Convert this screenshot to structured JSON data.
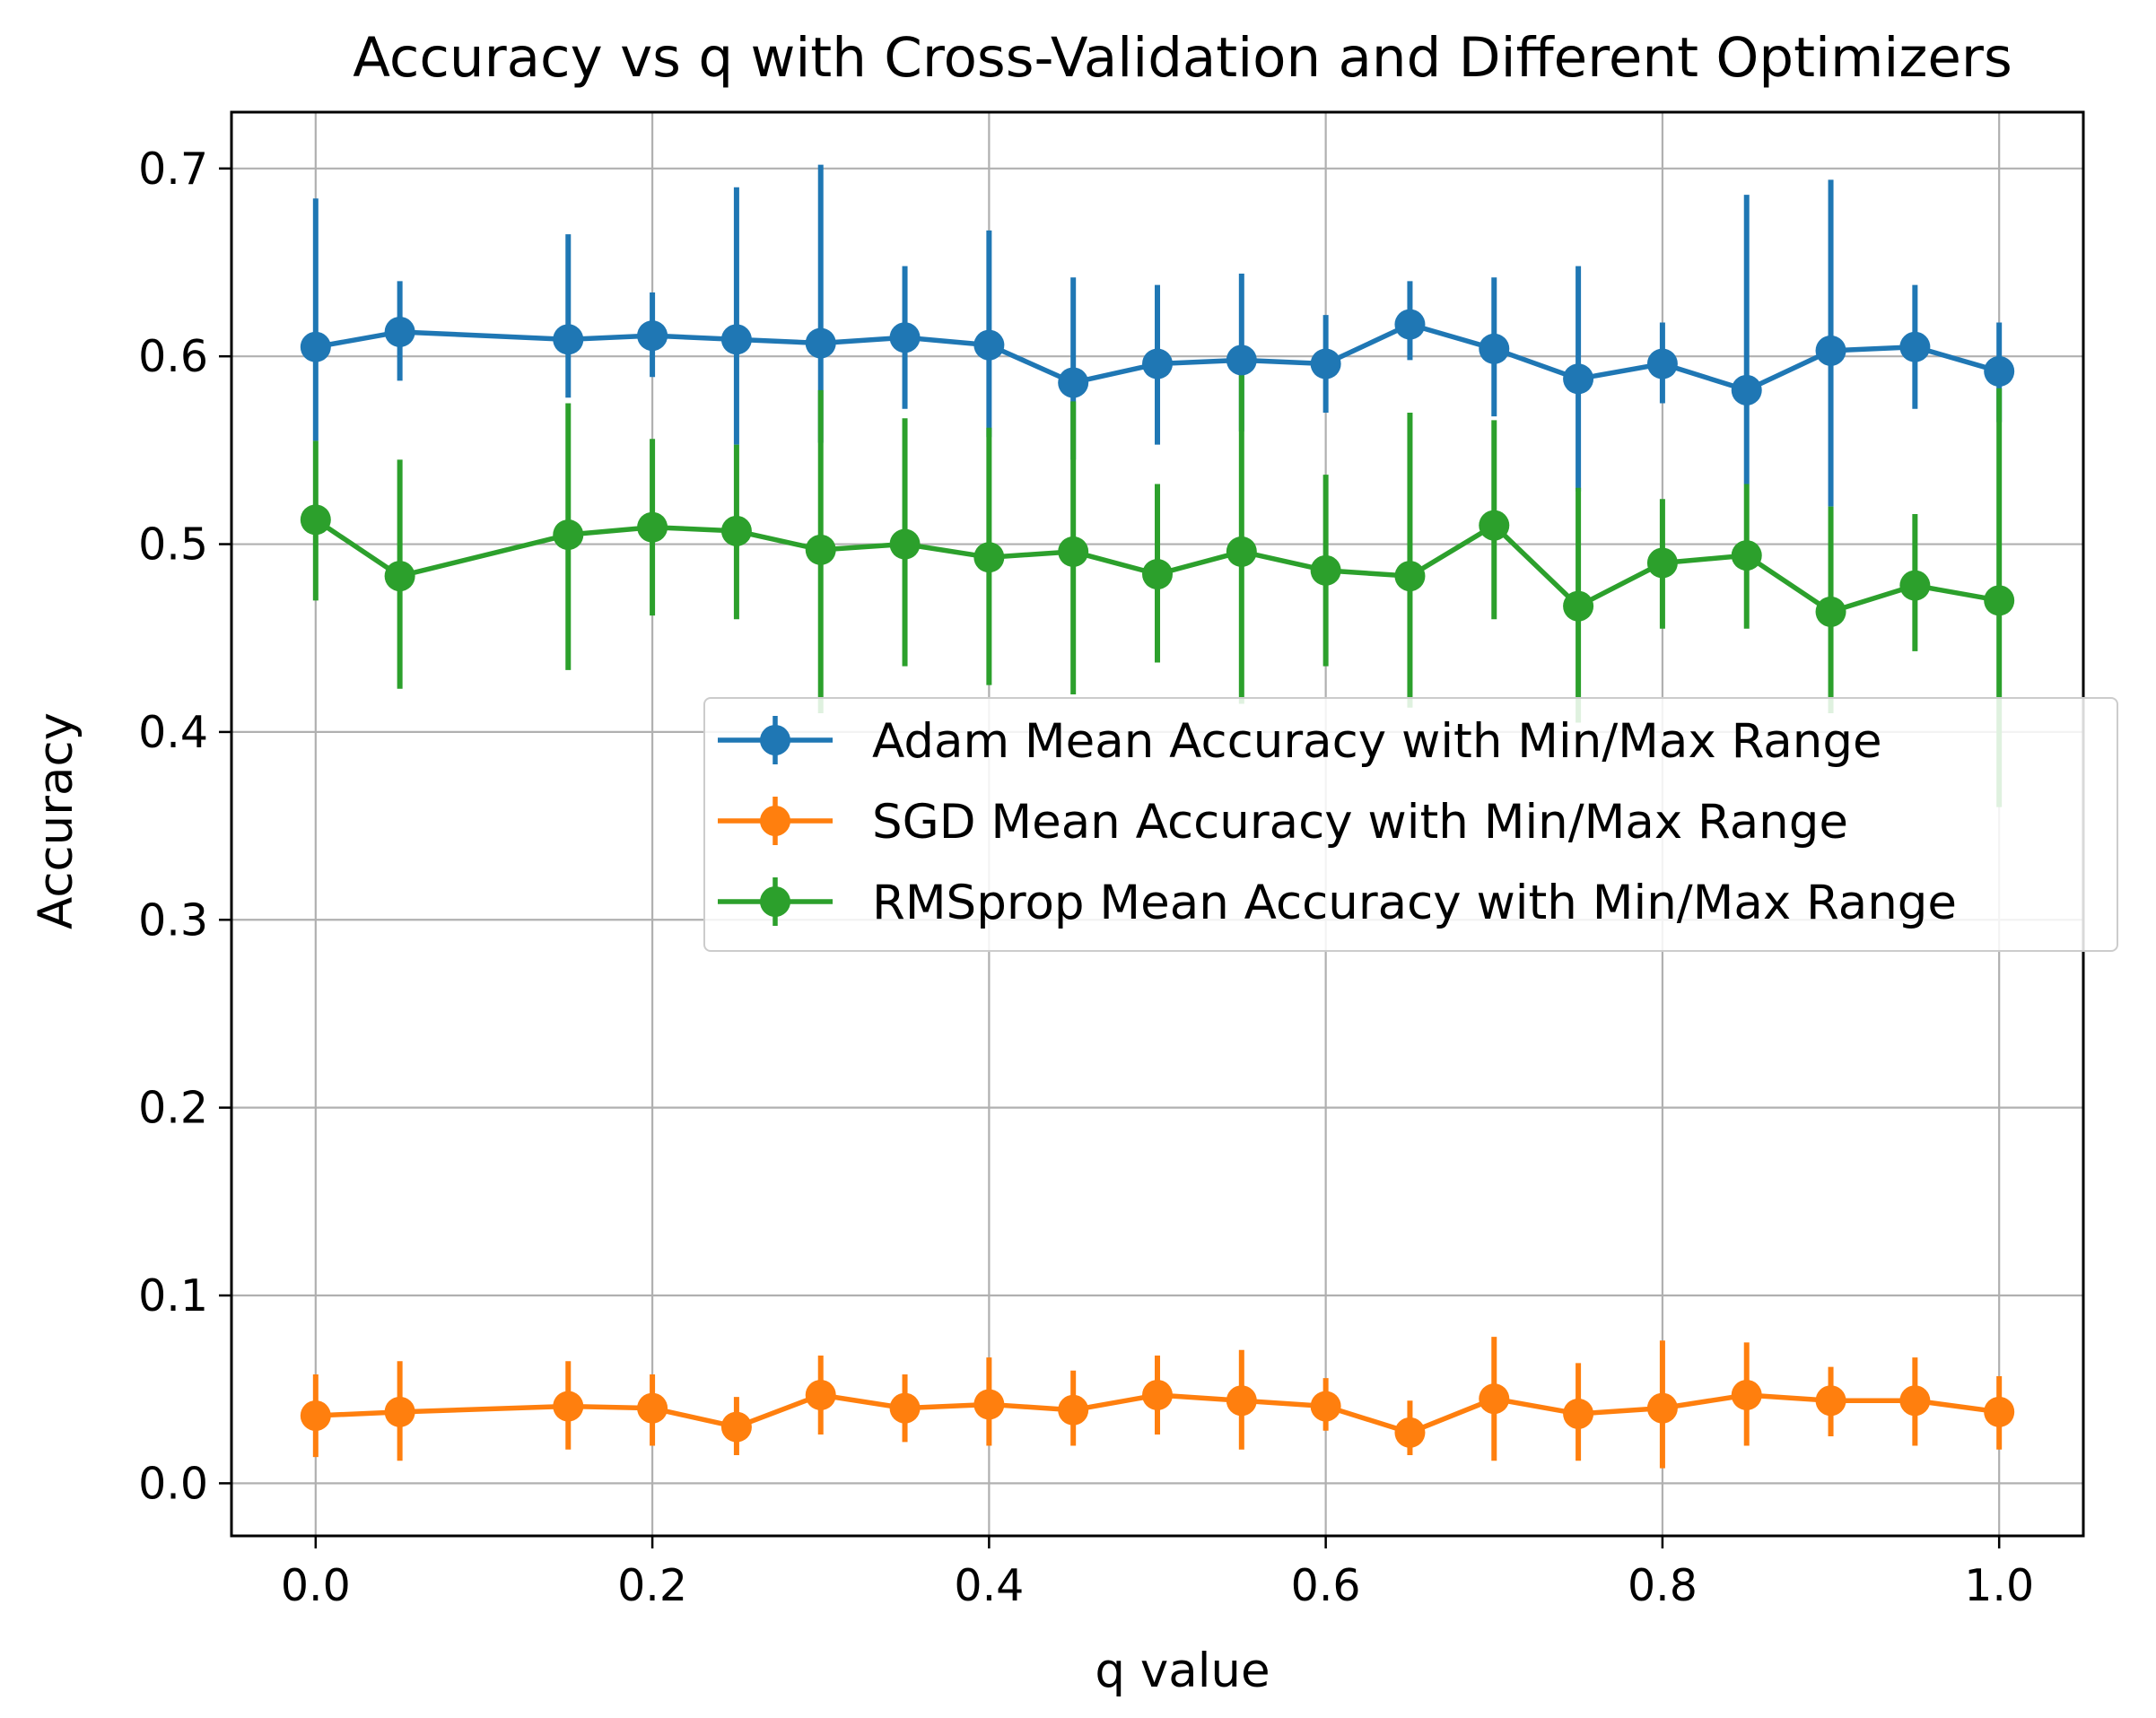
{
  "chart_data": {
    "type": "line",
    "title": "Accuracy vs q with Cross-Validation and Different Optimizers",
    "xlabel": "q value",
    "ylabel": "Accuracy",
    "xlim": [
      -0.05,
      1.05
    ],
    "ylim": [
      -0.028,
      0.73
    ],
    "xticks": [
      0.0,
      0.2,
      0.4,
      0.6,
      0.8,
      1.0
    ],
    "xtick_labels": [
      "0.0",
      "0.2",
      "0.4",
      "0.6",
      "0.8",
      "1.0"
    ],
    "yticks": [
      0.0,
      0.1,
      0.2,
      0.3,
      0.4,
      0.5,
      0.6,
      0.7
    ],
    "ytick_labels": [
      "0.0",
      "0.1",
      "0.2",
      "0.3",
      "0.4",
      "0.5",
      "0.6",
      "0.7"
    ],
    "grid": true,
    "legend_position": "center-right",
    "x": [
      0.0,
      0.05,
      0.15,
      0.2,
      0.25,
      0.3,
      0.35,
      0.4,
      0.45,
      0.5,
      0.55,
      0.6,
      0.65,
      0.7,
      0.75,
      0.8,
      0.85,
      0.9,
      0.95,
      1.0
    ],
    "series": [
      {
        "name": "Adam Mean Accuracy with Min/Max Range",
        "color": "#1f77b4",
        "values": [
          0.605,
          0.613,
          0.609,
          0.611,
          0.609,
          0.607,
          0.61,
          0.606,
          0.586,
          0.596,
          0.598,
          0.596,
          0.617,
          0.604,
          0.588,
          0.596,
          0.582,
          0.603,
          0.605,
          0.592
        ],
        "min": [
          0.555,
          0.587,
          0.578,
          0.589,
          0.553,
          0.554,
          0.572,
          0.557,
          0.545,
          0.553,
          0.56,
          0.57,
          0.598,
          0.568,
          0.528,
          0.575,
          0.532,
          0.52,
          0.572,
          0.565
        ],
        "max": [
          0.684,
          0.64,
          0.665,
          0.634,
          0.69,
          0.702,
          0.648,
          0.667,
          0.642,
          0.638,
          0.644,
          0.622,
          0.64,
          0.642,
          0.648,
          0.618,
          0.686,
          0.694,
          0.638,
          0.618
        ]
      },
      {
        "name": "SGD Mean Accuracy with Min/Max Range",
        "color": "#ff7f0e",
        "values": [
          0.036,
          0.038,
          0.041,
          0.04,
          0.03,
          0.047,
          0.04,
          0.042,
          0.039,
          0.047,
          0.044,
          0.041,
          0.027,
          0.045,
          0.037,
          0.04,
          0.047,
          0.044,
          0.044,
          0.038
        ],
        "min": [
          0.014,
          0.012,
          0.018,
          0.02,
          0.015,
          0.026,
          0.022,
          0.02,
          0.02,
          0.026,
          0.018,
          0.028,
          0.015,
          0.012,
          0.012,
          0.008,
          0.02,
          0.025,
          0.02,
          0.018
        ],
        "max": [
          0.058,
          0.065,
          0.065,
          0.058,
          0.046,
          0.068,
          0.058,
          0.067,
          0.06,
          0.068,
          0.071,
          0.056,
          0.044,
          0.078,
          0.064,
          0.076,
          0.075,
          0.062,
          0.067,
          0.057
        ]
      },
      {
        "name": "RMSprop Mean Accuracy with Min/Max Range",
        "color": "#2ca02c",
        "values": [
          0.513,
          0.483,
          0.505,
          0.509,
          0.507,
          0.497,
          0.5,
          0.493,
          0.496,
          0.484,
          0.496,
          0.486,
          0.483,
          0.51,
          0.467,
          0.49,
          0.494,
          0.464,
          0.478,
          0.47
        ],
        "min": [
          0.47,
          0.423,
          0.433,
          0.462,
          0.46,
          0.41,
          0.435,
          0.425,
          0.42,
          0.437,
          0.415,
          0.435,
          0.413,
          0.46,
          0.405,
          0.455,
          0.455,
          0.41,
          0.443,
          0.36
        ],
        "max": [
          0.555,
          0.545,
          0.575,
          0.556,
          0.553,
          0.582,
          0.567,
          0.562,
          0.576,
          0.532,
          0.59,
          0.537,
          0.57,
          0.566,
          0.53,
          0.524,
          0.532,
          0.52,
          0.516,
          0.583
        ]
      }
    ]
  }
}
